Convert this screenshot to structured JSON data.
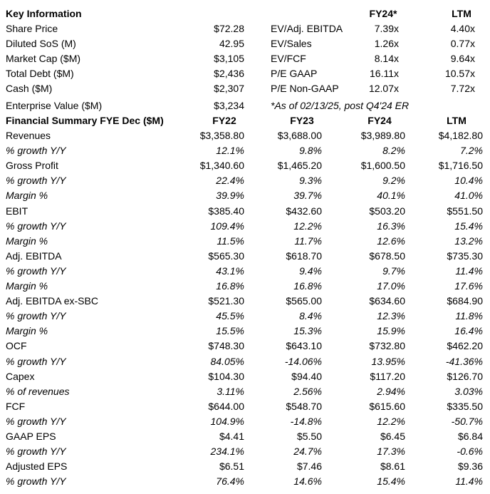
{
  "key_info": {
    "heading": "Key Information",
    "fy24_header": "FY24*",
    "ltm_header": "LTM",
    "rows": [
      {
        "label": "Share Price",
        "value": "$72.28",
        "metric": "EV/Adj. EBITDA",
        "fy24": "7.39x",
        "ltm": "4.40x"
      },
      {
        "label": "Diluted SoS (M)",
        "value": "42.95",
        "metric": "EV/Sales",
        "fy24": "1.26x",
        "ltm": "0.77x"
      },
      {
        "label": "Market Cap ($M)",
        "value": "$3,105",
        "metric": "EV/FCF",
        "fy24": "8.14x",
        "ltm": "9.64x"
      },
      {
        "label": "Total Debt ($M)",
        "value": "$2,436",
        "metric": "P/E GAAP",
        "fy24": "16.11x",
        "ltm": "10.57x"
      },
      {
        "label": "Cash ($M)",
        "value": "$2,307",
        "metric": "P/E Non-GAAP",
        "fy24": "12.07x",
        "ltm": "7.72x"
      },
      {
        "label": "Enterprise Value ($M)",
        "value": "$3,234",
        "metric": "",
        "fy24": "",
        "ltm": ""
      }
    ],
    "footnote": "*As of 02/13/25, post Q4'24 ER"
  },
  "financial_summary": {
    "heading": "Financial Summary FYE Dec ($M)",
    "columns": [
      "FY22",
      "FY23",
      "FY24",
      "LTM"
    ],
    "rows": [
      {
        "label": "Revenues",
        "italic": false,
        "values": [
          "$3,358.80",
          "$3,688.00",
          "$3,989.80",
          "$4,182.80"
        ]
      },
      {
        "label": "% growth Y/Y",
        "italic": true,
        "values": [
          "12.1%",
          "9.8%",
          "8.2%",
          "7.2%"
        ]
      },
      {
        "label": "Gross Profit",
        "italic": false,
        "values": [
          "$1,340.60",
          "$1,465.20",
          "$1,600.50",
          "$1,716.50"
        ]
      },
      {
        "label": "% growth Y/Y",
        "italic": true,
        "values": [
          "22.4%",
          "9.3%",
          "9.2%",
          "10.4%"
        ]
      },
      {
        "label": "Margin %",
        "italic": true,
        "values": [
          "39.9%",
          "39.7%",
          "40.1%",
          "41.0%"
        ]
      },
      {
        "label": "EBIT",
        "italic": false,
        "values": [
          "$385.40",
          "$432.60",
          "$503.20",
          "$551.50"
        ]
      },
      {
        "label": "% growth Y/Y",
        "italic": true,
        "values": [
          "109.4%",
          "12.2%",
          "16.3%",
          "15.4%"
        ]
      },
      {
        "label": "Margin %",
        "italic": true,
        "values": [
          "11.5%",
          "11.7%",
          "12.6%",
          "13.2%"
        ]
      },
      {
        "label": "Adj. EBITDA",
        "italic": false,
        "values": [
          "$565.30",
          "$618.70",
          "$678.50",
          "$735.30"
        ]
      },
      {
        "label": "% growth Y/Y",
        "italic": true,
        "values": [
          "43.1%",
          "9.4%",
          "9.7%",
          "11.4%"
        ]
      },
      {
        "label": "Margin %",
        "italic": true,
        "values": [
          "16.8%",
          "16.8%",
          "17.0%",
          "17.6%"
        ]
      },
      {
        "label": "Adj. EBITDA ex-SBC",
        "italic": false,
        "values": [
          "$521.30",
          "$565.00",
          "$634.60",
          "$684.90"
        ]
      },
      {
        "label": "% growth Y/Y",
        "italic": true,
        "values": [
          "45.5%",
          "8.4%",
          "12.3%",
          "11.8%"
        ]
      },
      {
        "label": "Margin %",
        "italic": true,
        "values": [
          "15.5%",
          "15.3%",
          "15.9%",
          "16.4%"
        ]
      },
      {
        "label": "OCF",
        "italic": false,
        "values": [
          "$748.30",
          "$643.10",
          "$732.80",
          "$462.20"
        ]
      },
      {
        "label": "% growth Y/Y",
        "italic": true,
        "values": [
          "84.05%",
          "-14.06%",
          "13.95%",
          "-41.36%"
        ]
      },
      {
        "label": "Capex",
        "italic": false,
        "values": [
          "$104.30",
          "$94.40",
          "$117.20",
          "$126.70"
        ]
      },
      {
        "label": "% of revenues",
        "italic": true,
        "values": [
          "3.11%",
          "2.56%",
          "2.94%",
          "3.03%"
        ]
      },
      {
        "label": "FCF",
        "italic": false,
        "values": [
          "$644.00",
          "$548.70",
          "$615.60",
          "$335.50"
        ]
      },
      {
        "label": "% growth Y/Y",
        "italic": true,
        "values": [
          "104.9%",
          "-14.8%",
          "12.2%",
          "-50.7%"
        ]
      },
      {
        "label": "GAAP EPS",
        "italic": false,
        "values": [
          "$4.41",
          "$5.50",
          "$6.45",
          "$6.84"
        ]
      },
      {
        "label": "% growth Y/Y",
        "italic": true,
        "values": [
          "234.1%",
          "24.7%",
          "17.3%",
          "-0.6%"
        ]
      },
      {
        "label": "Adjusted EPS",
        "italic": false,
        "values": [
          "$6.51",
          "$7.46",
          "$8.61",
          "$9.36"
        ]
      },
      {
        "label": "% growth Y/Y",
        "italic": true,
        "values": [
          "76.4%",
          "14.6%",
          "15.4%",
          "11.4%"
        ]
      }
    ]
  }
}
